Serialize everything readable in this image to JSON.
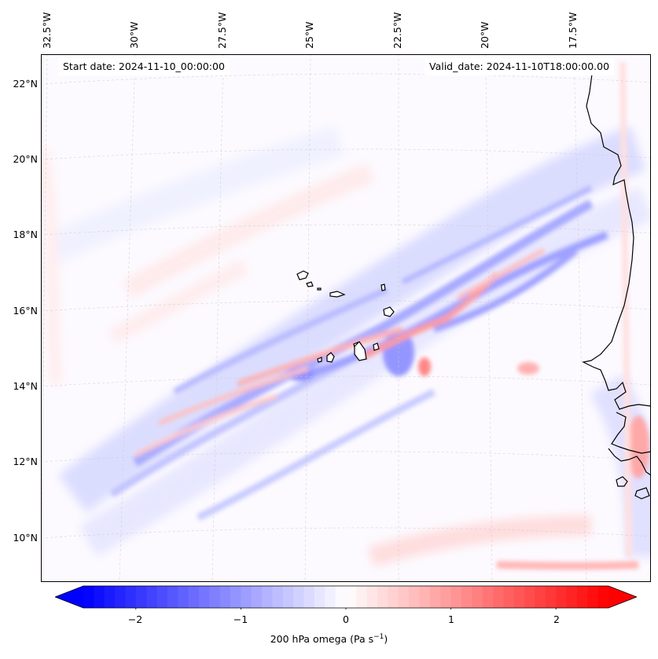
{
  "map": {
    "projection": "Lambert conformal (WRF domain)",
    "lon_labels": [
      "32.5°W",
      "30°W",
      "27.5°W",
      "25°W",
      "22.5°W",
      "20°W",
      "17.5°W"
    ],
    "lat_labels": [
      "22°N",
      "20°N",
      "18°N",
      "16°N",
      "14°N",
      "12°N",
      "10°N"
    ],
    "start_date": "Start date: 2024-11-10_00:00:00",
    "valid_date": "Valid_date: 2024-11-10T18:00:00.00",
    "features": [
      "cape-verde-islands",
      "west-africa-coastline"
    ]
  },
  "colorbar": {
    "label": "200 hPa omega (Pa s",
    "label_sup": "−1",
    "label_end": ")",
    "ticks": [
      "−2",
      "−1",
      "0",
      "1",
      "2"
    ],
    "tick_values": [
      -2,
      -1,
      0,
      1,
      2
    ],
    "range": [
      -2.5,
      2.5
    ],
    "cmap": "bwr",
    "low_color": "#0000ff",
    "mid_color": "#ffffff",
    "high_color": "#ff0000"
  }
}
